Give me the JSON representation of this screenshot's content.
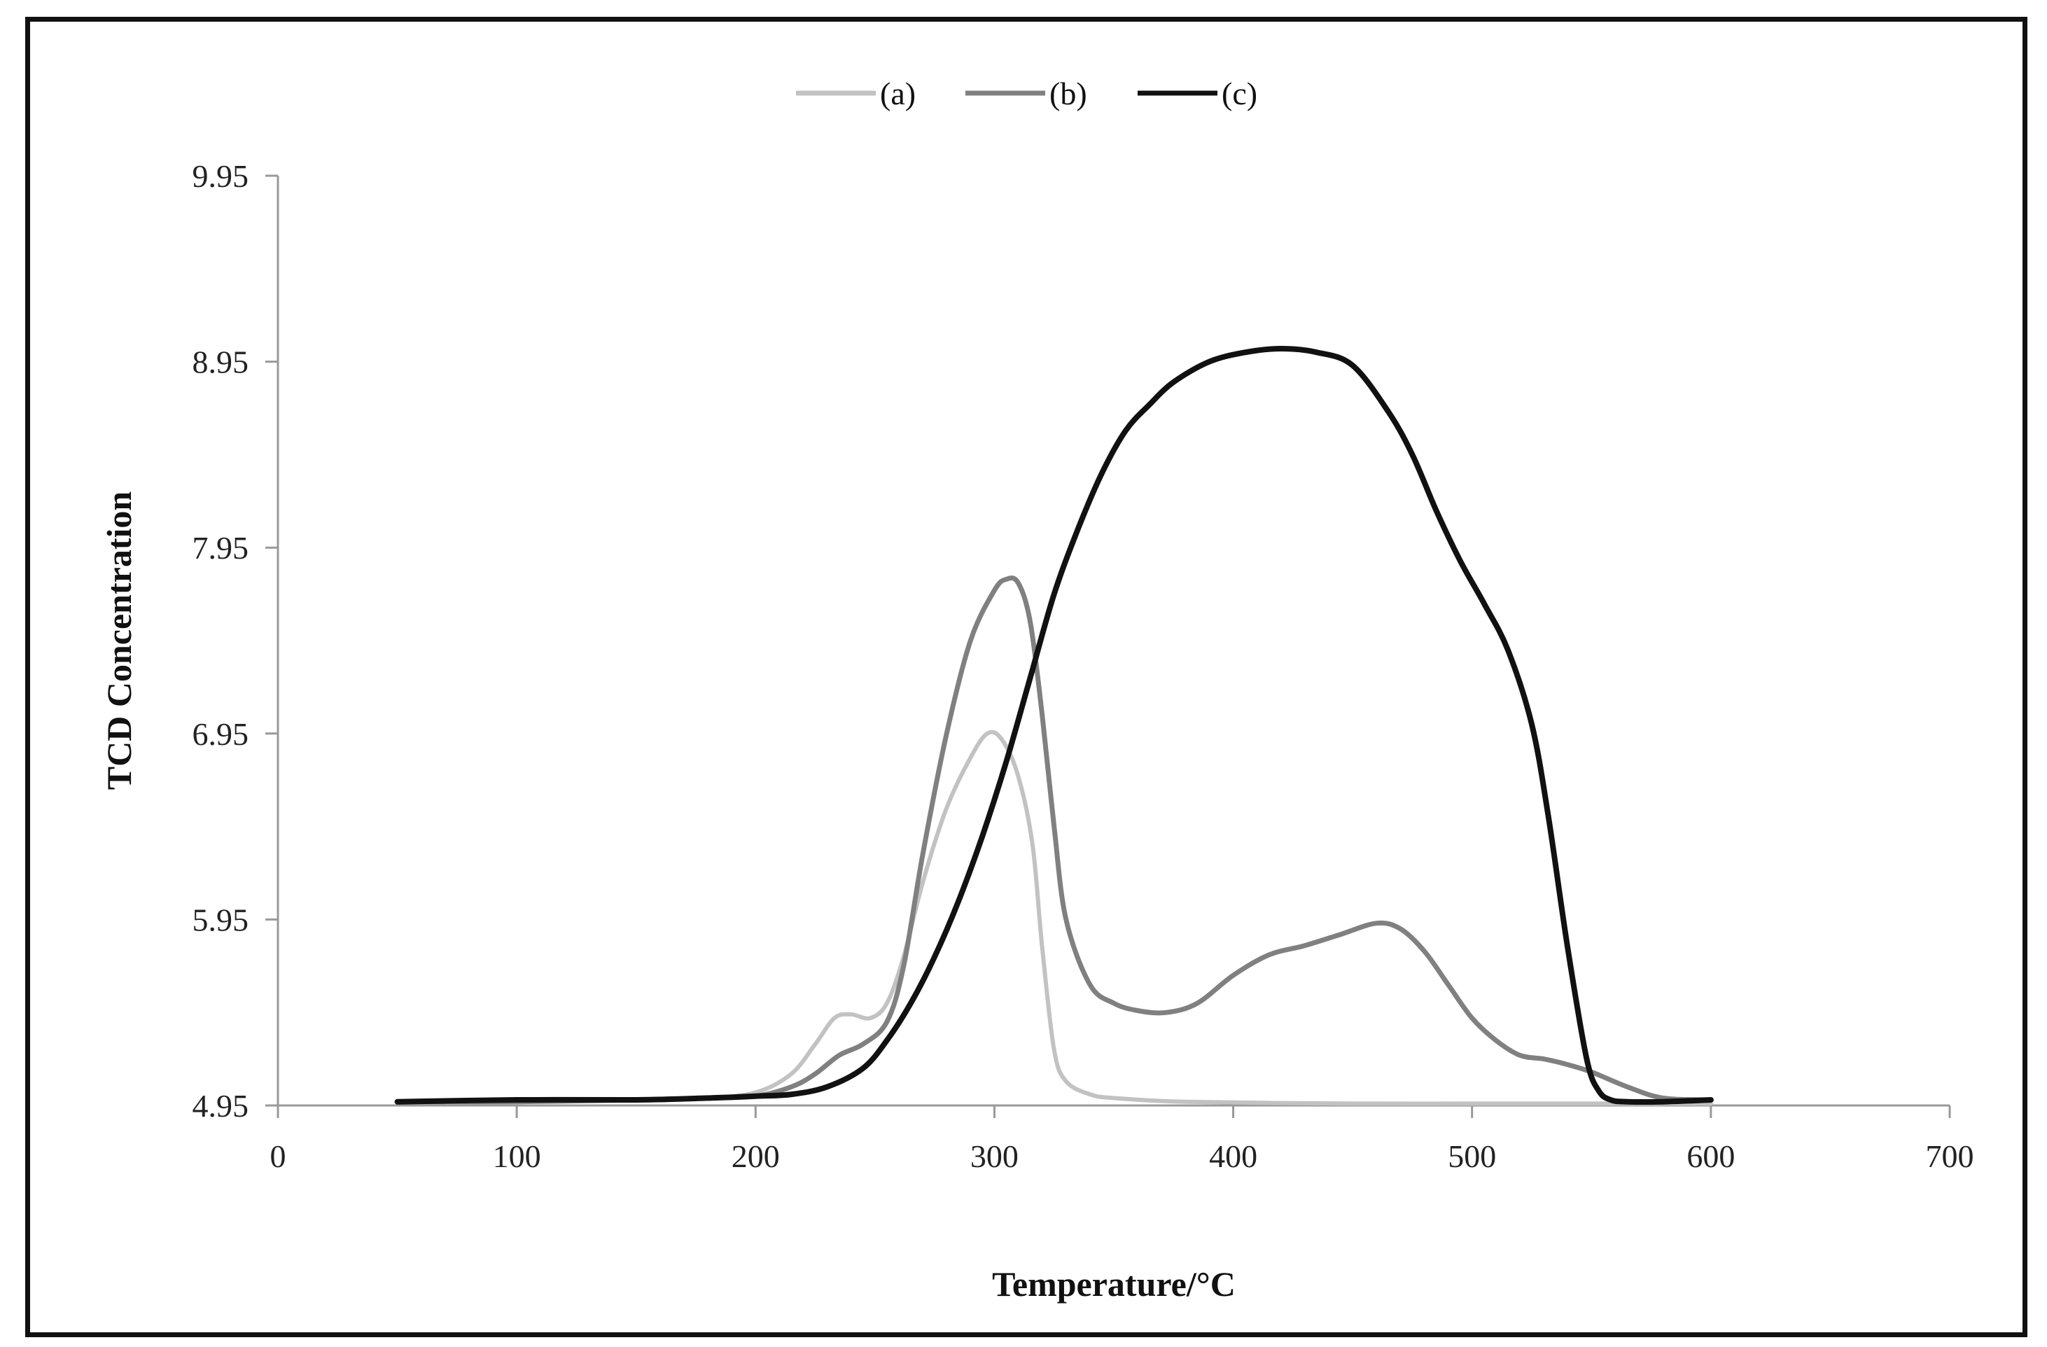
{
  "chart_data": {
    "type": "line",
    "title": "",
    "xlabel": "Temperature/°C",
    "ylabel": "TCD Concentration",
    "xlim": [
      0,
      700
    ],
    "ylim": [
      4.95,
      9.95
    ],
    "xticks": [
      0,
      100,
      200,
      300,
      400,
      500,
      600,
      700
    ],
    "xtick_labels": [
      "0",
      "100",
      "200",
      "300",
      "400",
      "500",
      "600",
      "700"
    ],
    "yticks": [
      4.95,
      5.95,
      6.95,
      7.95,
      8.95,
      9.95
    ],
    "ytick_labels": [
      "4.95",
      "5.95",
      "6.95",
      "7.95",
      "8.95",
      "9.95"
    ],
    "grid": false,
    "legend_position": "top-center",
    "series": [
      {
        "name": "(a)",
        "color": "#c2c2c2",
        "x": [
          50,
          100,
          150,
          180,
          200,
          215,
          225,
          233,
          240,
          248,
          255,
          262,
          270,
          280,
          290,
          297,
          303,
          310,
          316,
          320,
          325,
          330,
          340,
          350,
          380,
          450,
          500,
          550,
          600
        ],
        "y": [
          4.97,
          4.97,
          4.98,
          4.99,
          5.02,
          5.12,
          5.28,
          5.42,
          5.44,
          5.42,
          5.5,
          5.75,
          6.15,
          6.55,
          6.82,
          6.95,
          6.92,
          6.72,
          6.35,
          5.8,
          5.25,
          5.08,
          5.01,
          4.99,
          4.97,
          4.96,
          4.96,
          4.96,
          4.96
        ]
      },
      {
        "name": "(b)",
        "color": "#808080",
        "x": [
          50,
          100,
          150,
          180,
          200,
          215,
          225,
          235,
          245,
          255,
          262,
          270,
          280,
          290,
          300,
          305,
          310,
          315,
          320,
          325,
          330,
          340,
          350,
          360,
          372,
          385,
          400,
          415,
          430,
          445,
          460,
          470,
          480,
          490,
          500,
          510,
          520,
          530,
          540,
          550,
          565,
          580,
          600
        ],
        "y": [
          4.97,
          4.97,
          4.98,
          4.99,
          5.0,
          5.05,
          5.12,
          5.22,
          5.28,
          5.4,
          5.7,
          6.3,
          6.95,
          7.45,
          7.72,
          7.78,
          7.76,
          7.55,
          7.05,
          6.45,
          5.95,
          5.6,
          5.5,
          5.46,
          5.45,
          5.5,
          5.65,
          5.76,
          5.81,
          5.87,
          5.93,
          5.9,
          5.78,
          5.6,
          5.42,
          5.3,
          5.22,
          5.2,
          5.17,
          5.13,
          5.05,
          4.99,
          4.98
        ]
      },
      {
        "name": "(c)",
        "color": "#111111",
        "x": [
          50,
          100,
          150,
          180,
          200,
          215,
          230,
          245,
          255,
          265,
          275,
          285,
          295,
          305,
          315,
          325,
          335,
          345,
          355,
          365,
          375,
          390,
          405,
          420,
          435,
          450,
          465,
          475,
          485,
          495,
          505,
          515,
          525,
          532,
          540,
          548,
          553,
          558,
          565,
          580,
          600
        ],
        "y": [
          4.97,
          4.98,
          4.98,
          4.99,
          5.0,
          5.01,
          5.05,
          5.15,
          5.3,
          5.5,
          5.75,
          6.05,
          6.4,
          6.8,
          7.25,
          7.7,
          8.05,
          8.35,
          8.58,
          8.72,
          8.84,
          8.95,
          9.0,
          9.02,
          9.0,
          8.93,
          8.68,
          8.45,
          8.15,
          7.88,
          7.65,
          7.4,
          7.0,
          6.5,
          5.8,
          5.2,
          5.03,
          4.98,
          4.97,
          4.97,
          4.98
        ]
      }
    ]
  }
}
